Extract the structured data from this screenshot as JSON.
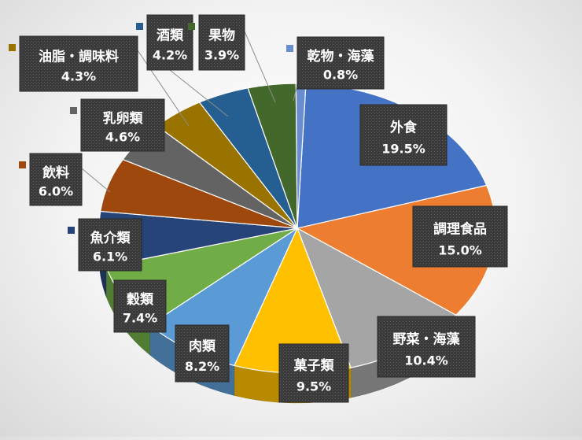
{
  "chart_data": {
    "type": "pie",
    "title": "",
    "series": [
      {
        "name": "外食",
        "value": 19.5,
        "label": "19.5%",
        "color": "#4472c4"
      },
      {
        "name": "調理食品",
        "value": 15.0,
        "label": "15.0%",
        "color": "#ed7d31"
      },
      {
        "name": "野菜・海藻",
        "value": 10.4,
        "label": "10.4%",
        "color": "#a5a5a5"
      },
      {
        "name": "菓子類",
        "value": 9.5,
        "label": "9.5%",
        "color": "#ffc000"
      },
      {
        "name": "肉類",
        "value": 8.2,
        "label": "8.2%",
        "color": "#5b9bd5"
      },
      {
        "name": "穀類",
        "value": 7.4,
        "label": "7.4%",
        "color": "#70ad47"
      },
      {
        "name": "魚介類",
        "value": 6.1,
        "label": "6.1%",
        "color": "#264478"
      },
      {
        "name": "飲料",
        "value": 6.0,
        "label": "6.0%",
        "color": "#9e480e"
      },
      {
        "name": "乳卵類",
        "value": 4.6,
        "label": "4.6%",
        "color": "#636363"
      },
      {
        "name": "油脂・調味料",
        "value": 4.3,
        "label": "4.3%",
        "color": "#997300"
      },
      {
        "name": "酒類",
        "value": 4.2,
        "label": "4.2%",
        "color": "#255e91"
      },
      {
        "name": "果物",
        "value": 3.9,
        "label": "3.9%",
        "color": "#43682b"
      },
      {
        "name": "乾物・海藻",
        "value": 0.8,
        "label": "0.8%",
        "color": "#698ed0"
      }
    ]
  }
}
